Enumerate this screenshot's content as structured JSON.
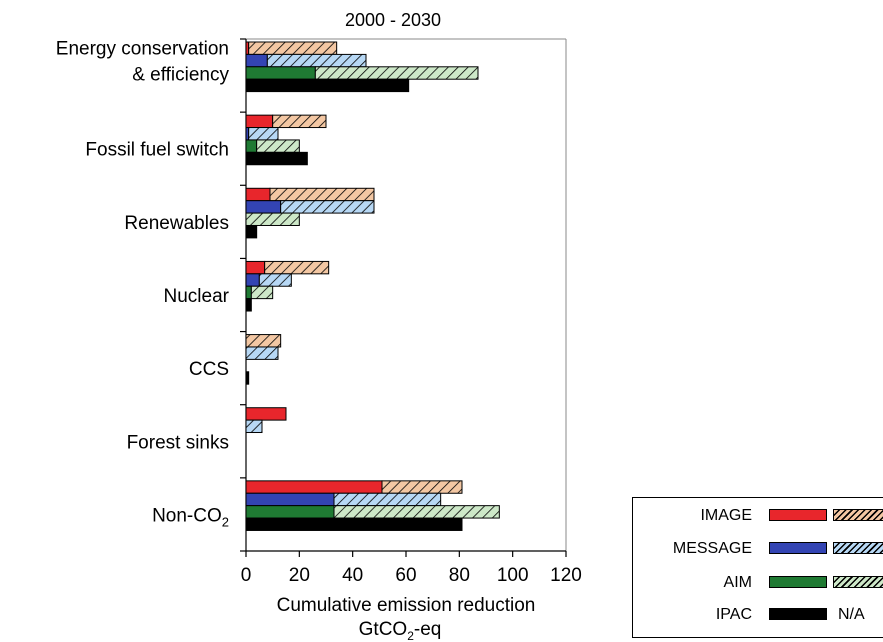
{
  "chart_data": {
    "type": "bar",
    "orientation": "horizontal",
    "title": "2000 - 2030",
    "xlabel": "Cumulative emission reduction",
    "xunit_main": "GtCO",
    "xunit_sub": "2",
    "xunit_tail": "-eq",
    "xlim": [
      0,
      120
    ],
    "xticks": [
      "0",
      "20",
      "40",
      "60",
      "80",
      "100",
      "120"
    ],
    "grid": false,
    "legend_position": "bottom-right",
    "categories": [
      {
        "line1": "Energy conservation",
        "line2": "& efficiency"
      },
      {
        "line1": "Fossil fuel switch"
      },
      {
        "line1": "Renewables"
      },
      {
        "line1": "Nuclear"
      },
      {
        "line1": "CCS"
      },
      {
        "line1": "Forest sinks"
      },
      {
        "line1": "Non-CO",
        "sub": "2"
      }
    ],
    "series": [
      {
        "name": "IMAGE",
        "color": "#e8262c",
        "hatch_color": "#f3c7a3",
        "solid": [
          1,
          10,
          9,
          7,
          0,
          15,
          51
        ],
        "total": [
          34,
          30,
          48,
          31,
          13,
          15,
          81
        ]
      },
      {
        "name": "MESSAGE",
        "color": "#3344b3",
        "hatch_color": "#b7d8f5",
        "solid": [
          8,
          1,
          13,
          5,
          0,
          0,
          33
        ],
        "total": [
          45,
          12,
          48,
          17,
          12,
          6,
          73
        ]
      },
      {
        "name": "AIM",
        "color": "#1f7a33",
        "hatch_color": "#cde8c8",
        "solid": [
          26,
          4,
          0,
          2,
          0,
          0,
          33
        ],
        "total": [
          87,
          20,
          20,
          10,
          0,
          0,
          95
        ]
      },
      {
        "name": "IPAC",
        "color": "#000000",
        "hatch_color": null,
        "solid": [
          61,
          23,
          4,
          2,
          1,
          0,
          81
        ],
        "total": [
          61,
          23,
          4,
          2,
          1,
          0,
          81
        ]
      }
    ],
    "legend_na": "N/A"
  }
}
